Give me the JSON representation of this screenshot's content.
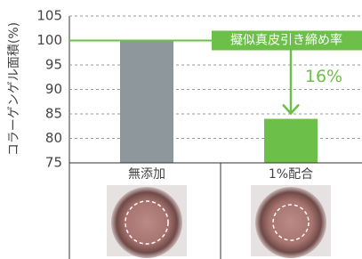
{
  "chart_data": {
    "type": "bar",
    "y_label": "コラーゲンゲル面積(%)",
    "categories": [
      "無添加",
      "1%配合"
    ],
    "values": [
      100,
      84
    ],
    "colors": [
      "#8e989c",
      "#6cc04a"
    ],
    "ylim": [
      75,
      105
    ],
    "yticks": [
      75,
      80,
      85,
      90,
      95,
      100,
      105
    ],
    "grid": true,
    "reference_line": {
      "value": 100,
      "label": "擬似真皮引き締め率",
      "color": "#6cc04a"
    },
    "annotation": "16%"
  }
}
